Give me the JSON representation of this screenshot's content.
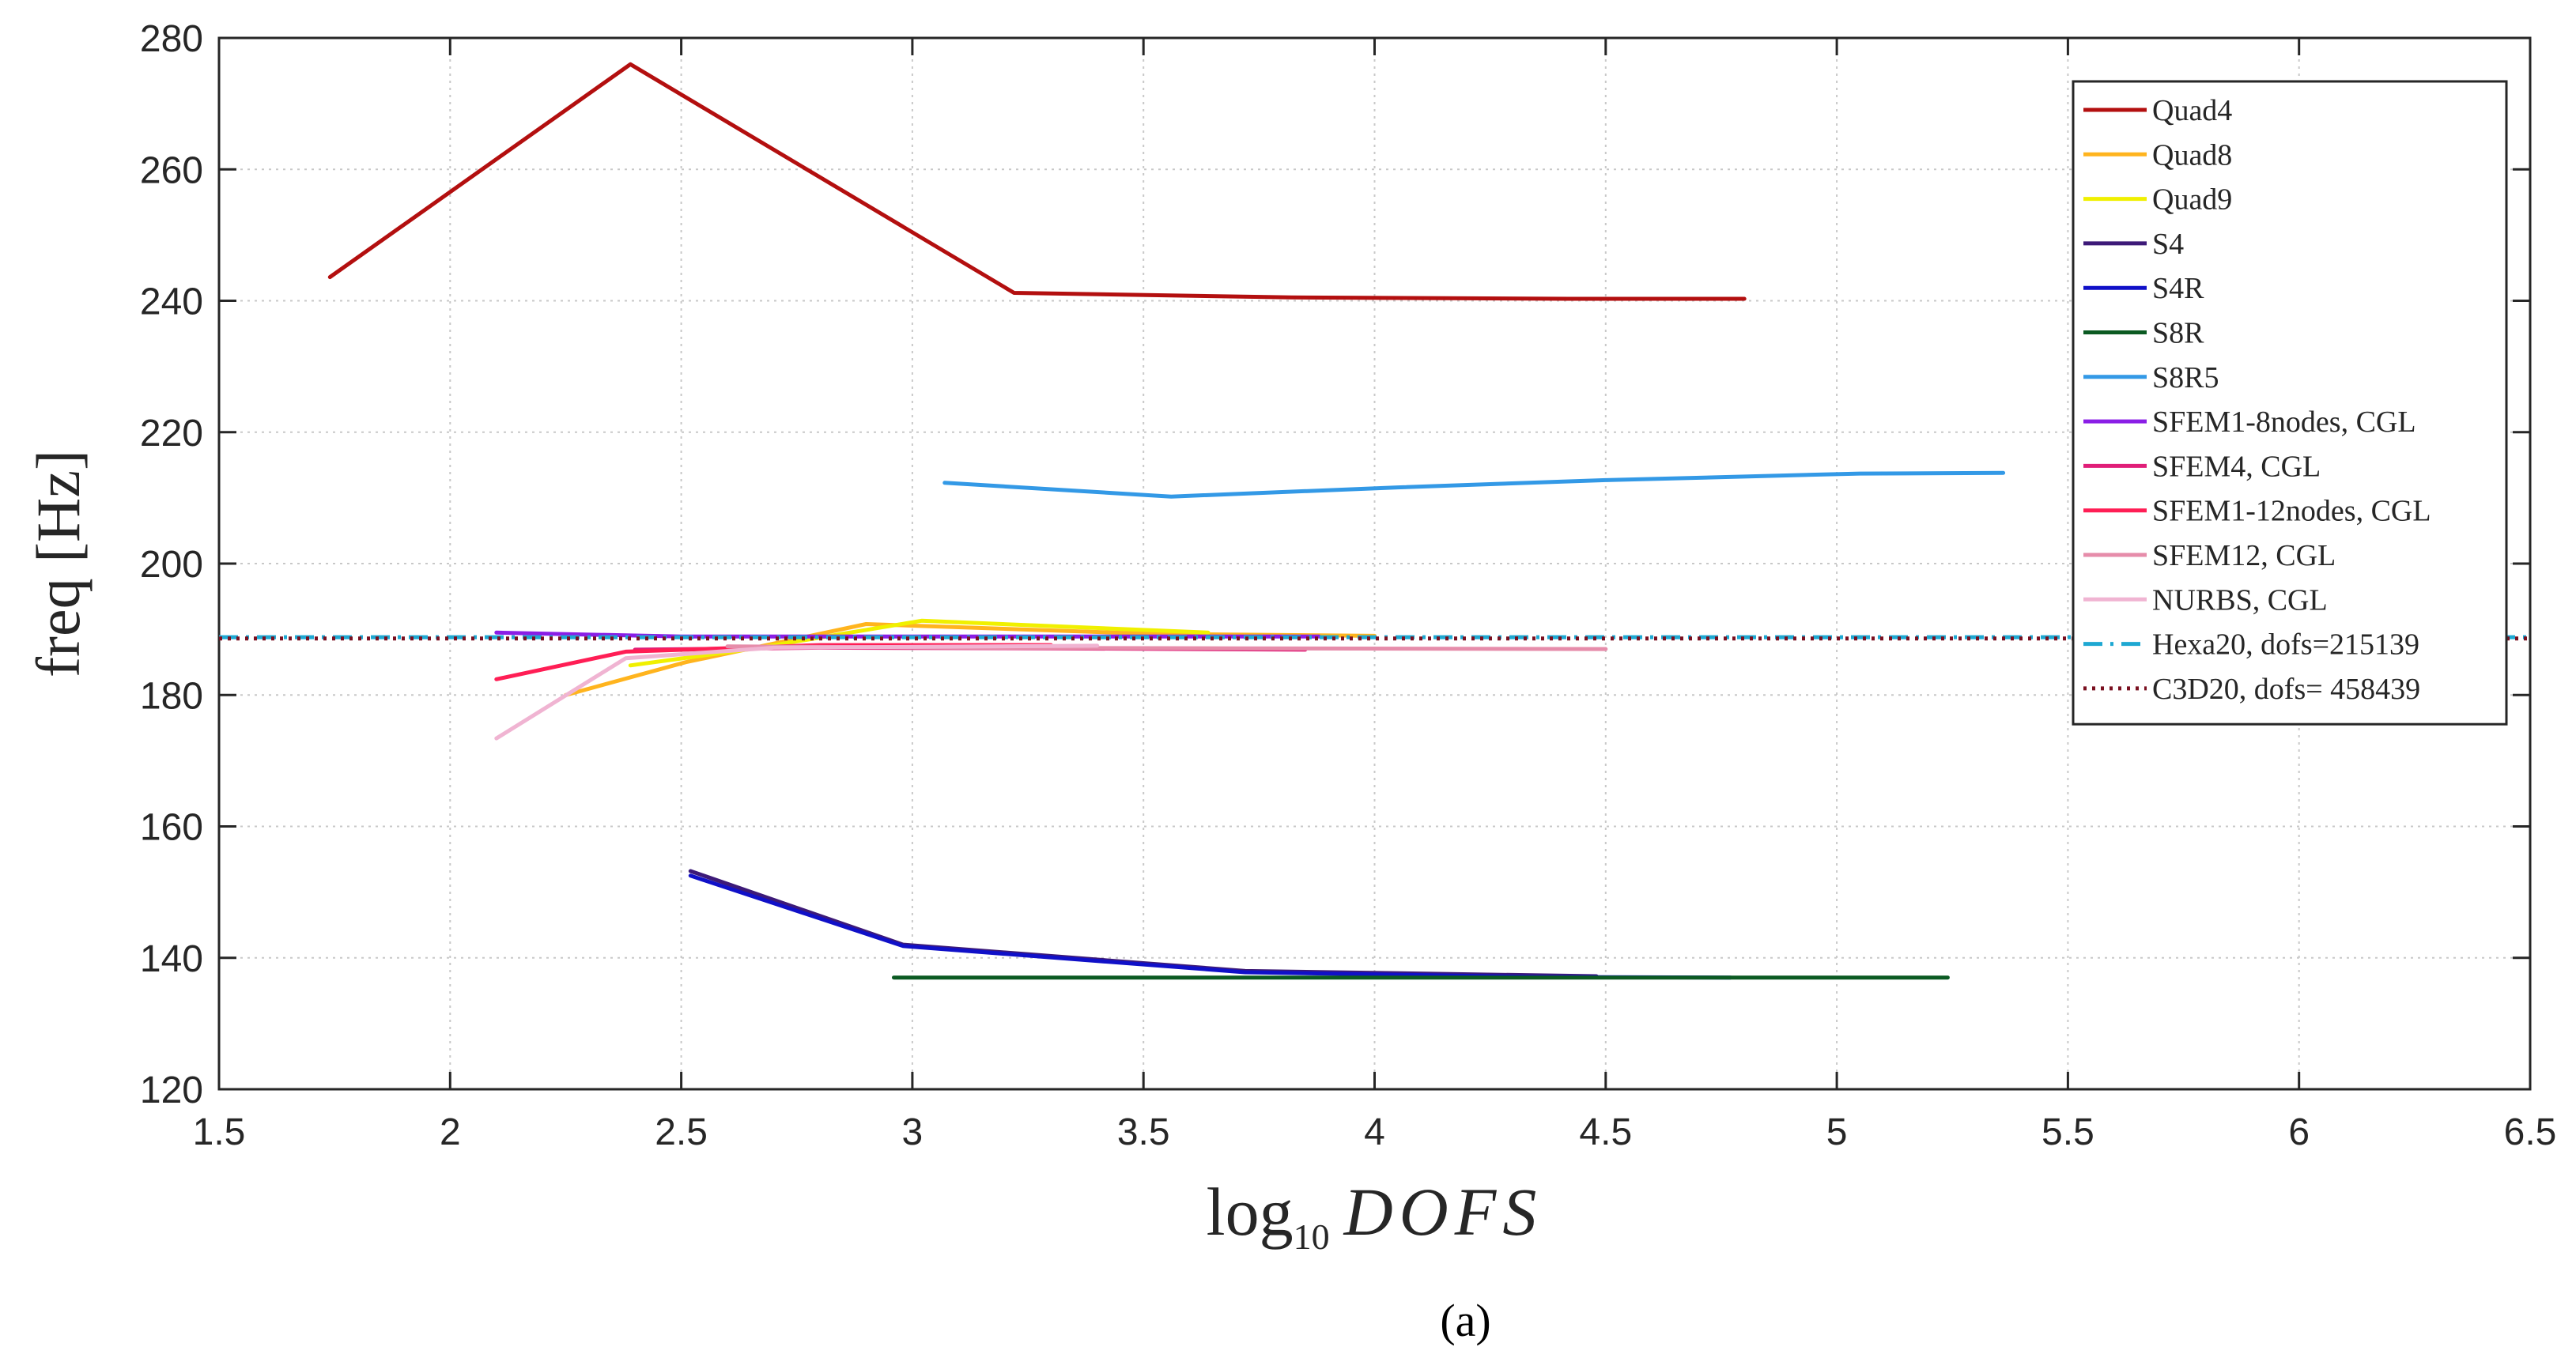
{
  "caption": {
    "label": "(a)"
  },
  "chart_data": {
    "type": "line",
    "title": "",
    "xlabel": "log10 DOFS",
    "xlabel_parts": {
      "prefix": "log",
      "subscript": "10",
      "variable": "DOFS"
    },
    "ylabel": "freq [Hz]",
    "xlim": [
      1.5,
      6.5
    ],
    "ylim": [
      120,
      280
    ],
    "xticks": [
      1.5,
      2,
      2.5,
      3,
      3.5,
      4,
      4.5,
      5,
      5.5,
      6,
      6.5
    ],
    "xtick_labels": [
      "1.5",
      "2",
      "2.5",
      "3",
      "3.5",
      "4",
      "4.5",
      "5",
      "5.5",
      "6",
      "6.5"
    ],
    "yticks": [
      120,
      140,
      160,
      180,
      200,
      220,
      240,
      260,
      280
    ],
    "ytick_labels": [
      "120",
      "140",
      "160",
      "180",
      "200",
      "220",
      "240",
      "260",
      "280"
    ],
    "grid": true,
    "legend_position": "top-right",
    "series": [
      {
        "name": "Quad4",
        "color": "#b30f0f",
        "style": "solid",
        "x": [
          1.74,
          2.39,
          3.22,
          3.82,
          4.42,
          4.8
        ],
        "y": [
          243.6,
          276.0,
          241.2,
          240.5,
          240.3,
          240.3
        ]
      },
      {
        "name": "Quad8",
        "color": "#ffb41e",
        "style": "solid",
        "x": [
          2.25,
          2.51,
          2.9,
          3.52,
          4.0
        ],
        "y": [
          180.0,
          185.0,
          190.8,
          189.3,
          189.0
        ]
      },
      {
        "name": "Quad9",
        "color": "#f0f000",
        "style": "solid",
        "x": [
          2.39,
          2.65,
          3.02,
          3.64
        ],
        "y": [
          184.5,
          187.0,
          191.3,
          189.5
        ]
      },
      {
        "name": "S4",
        "color": "#3d1a78",
        "style": "solid",
        "x": [
          2.52,
          2.98,
          3.72,
          4.48
        ],
        "y": [
          153.2,
          142.0,
          138.0,
          137.2
        ]
      },
      {
        "name": "S4R",
        "color": "#1010c8",
        "style": "solid",
        "x": [
          2.52,
          2.98,
          3.72,
          4.34,
          4.77
        ],
        "y": [
          152.5,
          141.8,
          137.8,
          137.1,
          137.0
        ]
      },
      {
        "name": "S8R",
        "color": "#0b5a22",
        "style": "solid",
        "x": [
          2.96,
          3.5,
          4.1,
          4.7,
          5.24
        ],
        "y": [
          137.0,
          137.0,
          137.0,
          137.0,
          137.0
        ]
      },
      {
        "name": "S8R5",
        "color": "#3399e6",
        "style": "solid",
        "x": [
          3.07,
          3.56,
          4.05,
          4.5,
          5.05,
          5.36
        ],
        "y": [
          212.3,
          210.2,
          211.6,
          212.7,
          213.7,
          213.8
        ]
      },
      {
        "name": "SFEM1-8nodes, CGL",
        "color": "#8a1ee6",
        "style": "solid",
        "x": [
          2.1,
          2.5,
          3.0,
          3.88
        ],
        "y": [
          189.5,
          188.9,
          188.9,
          188.9
        ]
      },
      {
        "name": "SFEM4, CGL",
        "color": "#e01e78",
        "style": "solid",
        "x": [
          2.4,
          2.8,
          3.3,
          3.85
        ],
        "y": [
          186.9,
          187.2,
          187.1,
          186.9
        ]
      },
      {
        "name": "SFEM1-12nodes, CGL",
        "color": "#ff1e55",
        "style": "solid",
        "x": [
          2.1,
          2.38,
          2.8,
          3.3
        ],
        "y": [
          182.4,
          186.6,
          187.6,
          187.6
        ]
      },
      {
        "name": "SFEM12, CGL",
        "color": "#e68caa",
        "style": "solid",
        "x": [
          2.6,
          3.1,
          3.7,
          4.5
        ],
        "y": [
          187.4,
          187.2,
          187.1,
          187.0
        ]
      },
      {
        "name": "NURBS, CGL",
        "color": "#f0b4d2",
        "style": "solid",
        "x": [
          2.1,
          2.38,
          2.7,
          3.4
        ],
        "y": [
          173.4,
          185.6,
          187.2,
          187.5
        ]
      },
      {
        "name": "Hexa20, dofs=215139",
        "color": "#1ea8d2",
        "style": "dashdot",
        "x": [
          1.5,
          6.5
        ],
        "y": [
          188.8,
          188.8
        ]
      },
      {
        "name": "C3D20, dofs= 458439",
        "color": "#7a1020",
        "style": "dotted",
        "x": [
          1.5,
          6.5
        ],
        "y": [
          188.6,
          188.6
        ]
      }
    ]
  }
}
